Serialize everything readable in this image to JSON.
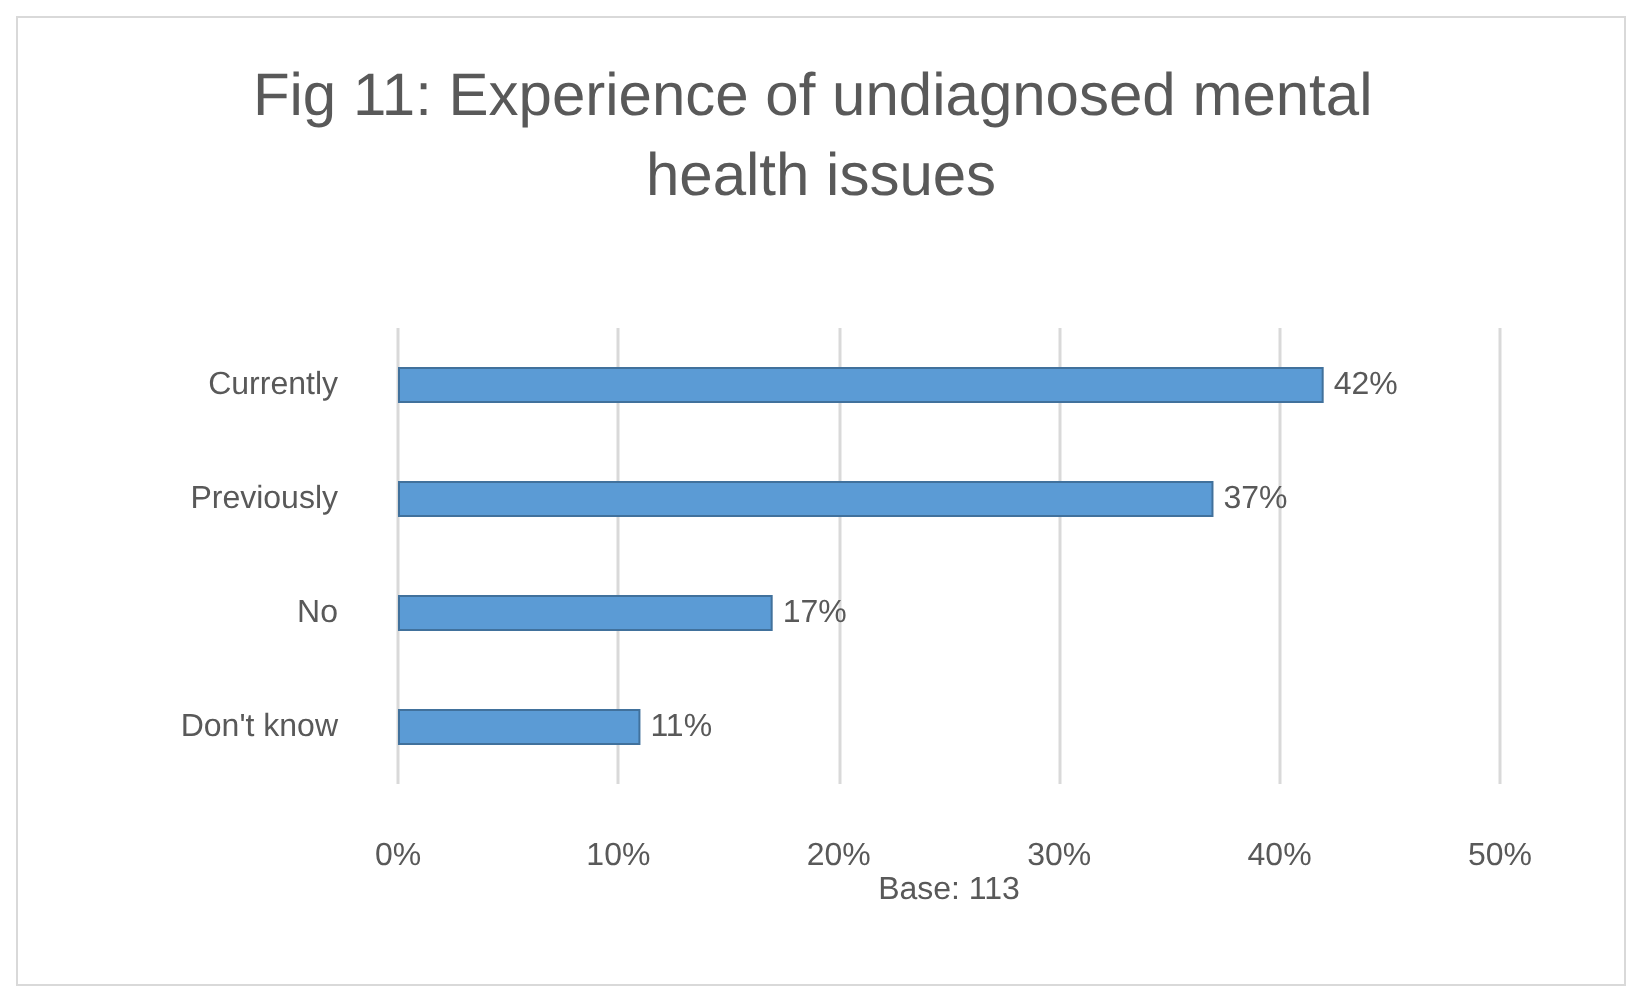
{
  "chart_data": {
    "type": "bar",
    "orientation": "horizontal",
    "title": "Fig 11: Experience of undiagnosed mental health issues",
    "xlabel": "Base: 113",
    "categories": [
      "Currently",
      "Previously",
      "No",
      "Don't know"
    ],
    "values": [
      42,
      37,
      17,
      11
    ],
    "value_labels": [
      "42%",
      "37%",
      "17%",
      "11%"
    ],
    "color": "#5b9bd5",
    "xlim": [
      0,
      50
    ],
    "xticks": [
      {
        "value": 0,
        "label": "0%"
      },
      {
        "value": 10,
        "label": "10%"
      },
      {
        "value": 20,
        "label": "20%"
      },
      {
        "value": 30,
        "label": "30%"
      },
      {
        "value": 40,
        "label": "40%"
      },
      {
        "value": 50,
        "label": "50%"
      }
    ],
    "grid": "x"
  }
}
